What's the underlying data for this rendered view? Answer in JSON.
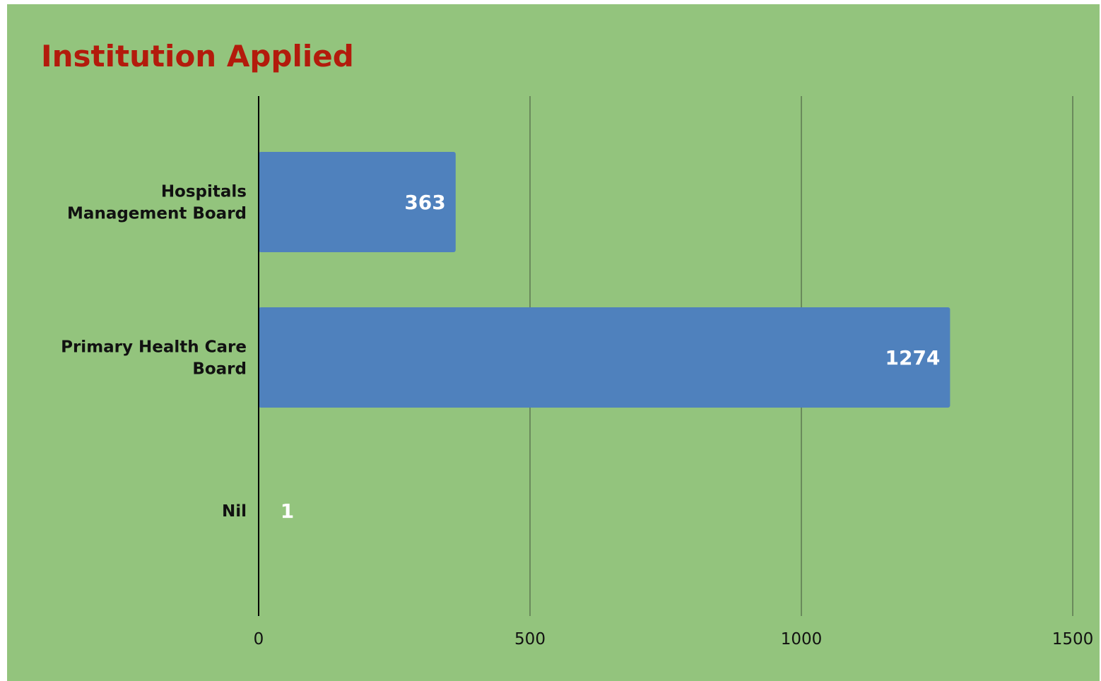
{
  "colors": {
    "background": "#93c47d",
    "title": "#b31b0c",
    "bar": "#4f81bd",
    "gridline": "#6a8a5c",
    "axis": "#000000",
    "data_label": "#ffffff"
  },
  "chart_data": {
    "type": "bar",
    "orientation": "horizontal",
    "title": "Institution Applied",
    "categories": [
      [
        "Hospitals",
        "Management Board"
      ],
      [
        "Primary Health Care",
        "Board"
      ],
      [
        "Nil"
      ]
    ],
    "values": [
      363,
      1274,
      1
    ],
    "data_labels": [
      "363",
      "1274",
      "1"
    ],
    "xlim": [
      0,
      1500
    ],
    "x_ticks": [
      0,
      500,
      1000,
      1500
    ],
    "x_tick_labels": [
      "0",
      "500",
      "1000",
      "1500"
    ],
    "grid": "vertical",
    "legend": "none"
  }
}
